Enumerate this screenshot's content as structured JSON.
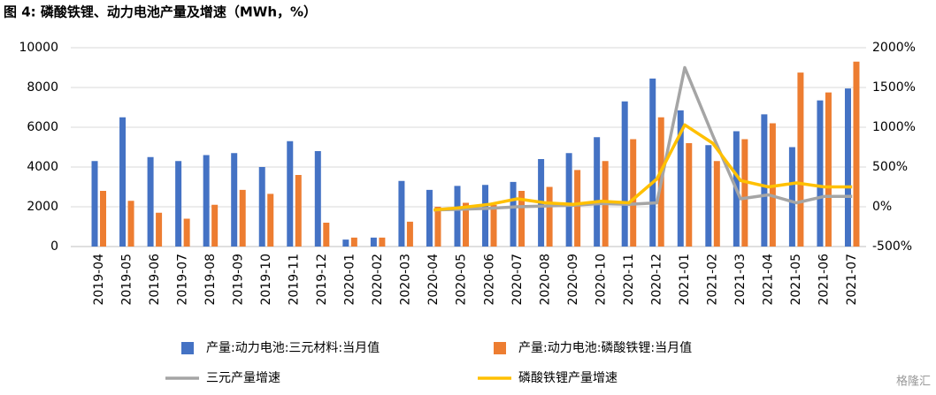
{
  "chart_data": {
    "type": "bar_line",
    "title": "图 4:  磷酸铁锂、动力电池产量及增速（MWh，%）",
    "categories": [
      "2019-04",
      "2019-05",
      "2019-06",
      "2019-07",
      "2019-08",
      "2019-09",
      "2019-10",
      "2019-11",
      "2019-12",
      "2020-01",
      "2020-02",
      "2020-03",
      "2020-04",
      "2020-05",
      "2020-06",
      "2020-07",
      "2020-08",
      "2020-09",
      "2020-10",
      "2020-11",
      "2020-12",
      "2021-01",
      "2021-02",
      "2021-03",
      "2021-04",
      "2021-05",
      "2021-06",
      "2021-07"
    ],
    "series": [
      {
        "name": "产量:动力电池:三元材料:当月值",
        "color": "#4472c4",
        "type": "bar",
        "values": [
          4300,
          6500,
          4500,
          4300,
          4600,
          4700,
          4000,
          5300,
          4800,
          350,
          450,
          3300,
          2850,
          3050,
          3100,
          3250,
          4400,
          4700,
          5500,
          7300,
          8450,
          6850,
          5100,
          5800,
          6650,
          5000,
          7350,
          7950
        ]
      },
      {
        "name": "产量:动力电池:磷酸铁锂:当月值",
        "color": "#ed7d31",
        "type": "bar",
        "values": [
          2800,
          2300,
          1700,
          1400,
          2100,
          2850,
          2650,
          3600,
          1200,
          450,
          450,
          1250,
          2000,
          2200,
          2100,
          2800,
          3000,
          3850,
          4300,
          5400,
          6500,
          5200,
          4300,
          5400,
          6200,
          8750,
          7750,
          9300
        ]
      },
      {
        "name": "三元产量增速",
        "color": "#a5a5a5",
        "type": "line",
        "axis": "y2",
        "values": [
          null,
          null,
          null,
          null,
          null,
          null,
          null,
          null,
          null,
          null,
          null,
          null,
          -40,
          -30,
          -20,
          0,
          10,
          20,
          40,
          30,
          50,
          1750,
          900,
          100,
          150,
          50,
          130,
          130
        ]
      },
      {
        "name": "磷酸铁锂产量增速",
        "color": "#ffc000",
        "type": "line",
        "axis": "y2",
        "values": [
          null,
          null,
          null,
          null,
          null,
          null,
          null,
          null,
          null,
          null,
          null,
          null,
          -40,
          -10,
          30,
          100,
          50,
          30,
          70,
          50,
          350,
          1030,
          800,
          330,
          250,
          300,
          250,
          250
        ]
      }
    ],
    "ylim": [
      0,
      10000
    ],
    "yticks": [
      0,
      2000,
      4000,
      6000,
      8000,
      10000
    ],
    "y2lim": [
      -500,
      2000
    ],
    "y2ticks": [
      {
        "value": -500,
        "label": "-500%"
      },
      {
        "value": 0,
        "label": "0%"
      },
      {
        "value": 500,
        "label": "500%"
      },
      {
        "value": 1000,
        "label": "1000%"
      },
      {
        "value": 1500,
        "label": "1500%"
      },
      {
        "value": 2000,
        "label": "2000%"
      }
    ],
    "grid": true,
    "legend": "bottom",
    "watermark": "格隆汇"
  }
}
